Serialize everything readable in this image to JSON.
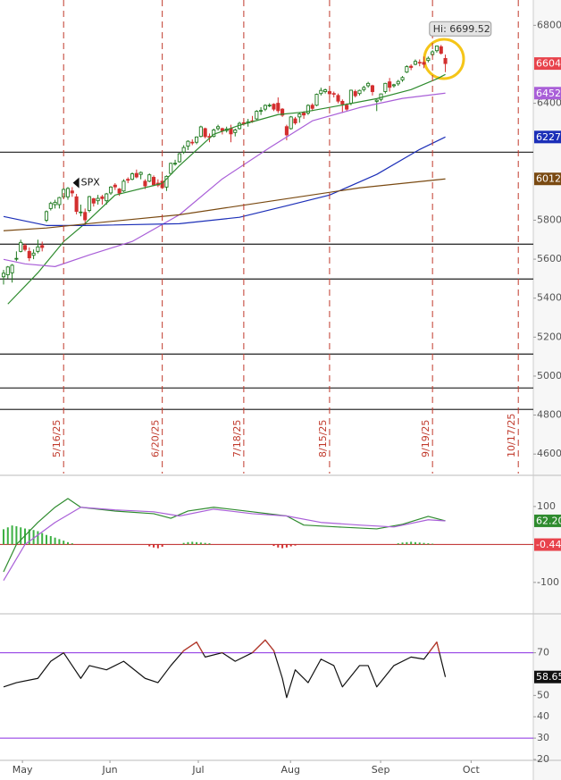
{
  "chart_data": [
    {
      "type": "candlestick",
      "xlim": [
        -0.83,
        123.5
      ],
      "ylim": [
        4500,
        6930
      ],
      "yticks": [
        6800,
        6400,
        5800,
        5600,
        5400,
        5200,
        5000,
        4800,
        4600
      ],
      "up_color": "#1f7a1f",
      "down_color": "#d32f2f",
      "candles": [
        [
          5510,
          5545,
          5470,
          5528
        ],
        [
          5520,
          5565,
          5500,
          5560
        ],
        [
          5530,
          5575,
          5480,
          5569
        ],
        [
          5600,
          5640,
          5590,
          5604
        ],
        [
          5640,
          5700,
          5635,
          5686
        ],
        [
          5670,
          5680,
          5640,
          5650
        ],
        [
          5640,
          5660,
          5590,
          5607
        ],
        [
          5620,
          5650,
          5600,
          5631
        ],
        [
          5640,
          5700,
          5630,
          5663
        ],
        [
          5670,
          5690,
          5640,
          5660
        ],
        [
          5800,
          5850,
          5790,
          5844
        ],
        [
          5860,
          5895,
          5850,
          5886
        ],
        [
          5880,
          5905,
          5860,
          5892
        ],
        [
          5880,
          5920,
          5860,
          5916
        ],
        [
          5920,
          5965,
          5910,
          5958
        ],
        [
          5920,
          5970,
          5905,
          5963
        ],
        [
          5950,
          5970,
          5920,
          5940
        ],
        [
          5920,
          5935,
          5830,
          5845
        ],
        [
          5840,
          5880,
          5820,
          5842
        ],
        [
          5840,
          5860,
          5770,
          5802
        ],
        [
          5850,
          5925,
          5840,
          5921
        ],
        [
          5910,
          5915,
          5870,
          5888
        ],
        [
          5900,
          5930,
          5880,
          5912
        ],
        [
          5920,
          5930,
          5880,
          5911
        ],
        [
          5900,
          5940,
          5880,
          5935
        ],
        [
          5940,
          5975,
          5930,
          5970
        ],
        [
          5980,
          5990,
          5955,
          5971
        ],
        [
          5960,
          5965,
          5925,
          5939
        ],
        [
          5950,
          6010,
          5945,
          6000
        ],
        [
          6010,
          6020,
          5990,
          6005
        ],
        [
          6010,
          6045,
          6005,
          6038
        ],
        [
          6040,
          6060,
          6015,
          6022
        ],
        [
          6035,
          6050,
          6010,
          6045
        ],
        [
          6000,
          6010,
          5960,
          5976
        ],
        [
          6000,
          6040,
          5995,
          6033
        ],
        [
          6020,
          6030,
          5975,
          5982
        ],
        [
          5990,
          6010,
          5970,
          5980
        ],
        [
          6000,
          6020,
          5960,
          5967
        ],
        [
          5970,
          6030,
          5950,
          6025
        ],
        [
          6040,
          6095,
          6035,
          6092
        ],
        [
          6090,
          6110,
          6080,
          6092
        ],
        [
          6100,
          6145,
          6095,
          6141
        ],
        [
          6150,
          6185,
          6140,
          6173
        ],
        [
          6180,
          6210,
          6160,
          6205
        ],
        [
          6200,
          6215,
          6185,
          6198
        ],
        [
          6200,
          6230,
          6190,
          6227
        ],
        [
          6230,
          6285,
          6225,
          6279
        ],
        [
          6270,
          6275,
          6220,
          6229
        ],
        [
          6230,
          6245,
          6200,
          6225
        ],
        [
          6230,
          6270,
          6225,
          6263
        ],
        [
          6270,
          6290,
          6260,
          6280
        ],
        [
          6270,
          6275,
          6240,
          6259
        ],
        [
          6260,
          6280,
          6250,
          6268
        ],
        [
          6270,
          6290,
          6200,
          6243
        ],
        [
          6250,
          6270,
          6230,
          6263
        ],
        [
          6270,
          6305,
          6265,
          6297
        ],
        [
          6300,
          6315,
          6285,
          6296
        ],
        [
          6300,
          6320,
          6280,
          6305
        ],
        [
          6310,
          6335,
          6300,
          6309
        ],
        [
          6320,
          6365,
          6315,
          6359
        ],
        [
          6360,
          6380,
          6340,
          6363
        ],
        [
          6370,
          6395,
          6360,
          6389
        ],
        [
          6390,
          6400,
          6380,
          6390
        ],
        [
          6395,
          6400,
          6360,
          6370
        ],
        [
          6400,
          6430,
          6350,
          6362
        ],
        [
          6370,
          6375,
          6330,
          6339
        ],
        [
          6280,
          6290,
          6210,
          6238
        ],
        [
          6270,
          6335,
          6265,
          6330
        ],
        [
          6320,
          6330,
          6290,
          6299
        ],
        [
          6330,
          6350,
          6300,
          6345
        ],
        [
          6350,
          6360,
          6320,
          6340
        ],
        [
          6350,
          6395,
          6340,
          6389
        ],
        [
          6390,
          6400,
          6360,
          6374
        ],
        [
          6390,
          6450,
          6385,
          6446
        ],
        [
          6450,
          6480,
          6440,
          6466
        ],
        [
          6460,
          6475,
          6450,
          6469
        ],
        [
          6460,
          6480,
          6430,
          6449
        ],
        [
          6450,
          6460,
          6430,
          6449
        ],
        [
          6440,
          6450,
          6400,
          6411
        ],
        [
          6410,
          6420,
          6350,
          6396
        ],
        [
          6390,
          6400,
          6360,
          6370
        ],
        [
          6400,
          6470,
          6390,
          6467
        ],
        [
          6460,
          6470,
          6430,
          6439
        ],
        [
          6450,
          6470,
          6440,
          6466
        ],
        [
          6470,
          6490,
          6460,
          6481
        ],
        [
          6490,
          6510,
          6480,
          6502
        ],
        [
          6490,
          6495,
          6440,
          6460
        ],
        [
          6410,
          6420,
          6360,
          6416
        ],
        [
          6420,
          6450,
          6410,
          6448
        ],
        [
          6460,
          6505,
          6450,
          6502
        ],
        [
          6510,
          6530,
          6460,
          6482
        ],
        [
          6490,
          6500,
          6480,
          6495
        ],
        [
          6500,
          6520,
          6490,
          6512
        ],
        [
          6520,
          6540,
          6510,
          6532
        ],
        [
          6560,
          6595,
          6555,
          6588
        ],
        [
          6590,
          6600,
          6570,
          6584
        ],
        [
          6600,
          6625,
          6595,
          6615
        ],
        [
          6610,
          6625,
          6590,
          6607
        ],
        [
          6610,
          6640,
          6580,
          6600
        ],
        [
          6620,
          6640,
          6610,
          6631
        ],
        [
          6650,
          6672,
          6640,
          6664
        ],
        [
          6670,
          6696,
          6660,
          6694
        ],
        [
          6690,
          6699.52,
          6650,
          6657
        ],
        [
          6630,
          6650,
          6560,
          6604
        ]
      ],
      "series": [
        {
          "color": "#2e8b2e",
          "x": [
            1,
            8,
            14,
            19,
            26,
            37,
            41,
            49,
            55,
            64,
            70,
            78,
            87,
            95,
            101,
            103
          ],
          "values": [
            5370,
            5530,
            5690,
            5783,
            5929,
            5989,
            6080,
            6241,
            6287,
            6342,
            6355,
            6387,
            6424,
            6470,
            6525,
            6548
          ]
        },
        {
          "color": "#a95fd8",
          "x": [
            0,
            5,
            12,
            20,
            30,
            41,
            51,
            62,
            72,
            83,
            93,
            103
          ],
          "values": [
            5599,
            5576,
            5562,
            5622,
            5691,
            5828,
            6012,
            6172,
            6310,
            6378,
            6425,
            6452
          ]
        },
        {
          "color": "#1c2fb8",
          "x": [
            0,
            10,
            20,
            41,
            55,
            66,
            76,
            87,
            97,
            103
          ],
          "values": [
            5819,
            5773,
            5773,
            5782,
            5815,
            5874,
            5929,
            6035,
            6163,
            6227
          ]
        },
        {
          "color": "#7a4a12",
          "x": [
            0,
            10,
            20,
            41,
            62,
            83,
            103
          ],
          "values": [
            5746,
            5760,
            5783,
            5828,
            5897,
            5966,
            6012
          ]
        }
      ],
      "tags": [
        {
          "value": 6604,
          "color": "#e8434c"
        },
        {
          "value": 6452,
          "color": "#a95fd8"
        },
        {
          "value": 6227,
          "color": "#1c2fb8"
        },
        {
          "value": 6012,
          "color": "#7a4a12"
        }
      ],
      "hlines": [
        6149,
        5677,
        5498,
        5113,
        4939,
        4829
      ],
      "hline_color": "#333333",
      "date_markers": [
        {
          "value": 14,
          "label": "5/16/25"
        },
        {
          "value": 37,
          "label": "6/20/25"
        },
        {
          "value": 56,
          "label": "7/18/25"
        },
        {
          "value": 76,
          "label": "8/15/25"
        },
        {
          "value": 100,
          "label": "9/19/25"
        },
        {
          "value": 120,
          "label": "10/17/25"
        }
      ],
      "date_marker_color": "#c0392b",
      "annotation": {
        "text": "Hi: 6699.52",
        "x": 102,
        "y": 6699.52
      },
      "symbol": {
        "text": "SPX",
        "x": 17,
        "y": 5992
      }
    },
    {
      "type": "macd",
      "xlim": [
        -0.83,
        123.5
      ],
      "ylim": [
        -178,
        175
      ],
      "yticks": [
        100,
        -100
      ],
      "series": [
        {
          "color": "#2e8b2e",
          "x": [
            0,
            3,
            8,
            12,
            15,
            18,
            26,
            35,
            39,
            43,
            49,
            58,
            66,
            70,
            78,
            87,
            93,
            99,
            103
          ],
          "values": [
            -72,
            0,
            58,
            98,
            121,
            98,
            88,
            81,
            69,
            88,
            98,
            86,
            75,
            51,
            46,
            41,
            53,
            74,
            62.2
          ]
        },
        {
          "color": "#a95fd8",
          "x": [
            0,
            5,
            12,
            18,
            26,
            35,
            41,
            49,
            58,
            66,
            74,
            83,
            91,
            99,
            103
          ],
          "values": [
            -95,
            0,
            58,
            98,
            91,
            86,
            75,
            93,
            81,
            75,
            58,
            51,
            46,
            65,
            62
          ]
        }
      ],
      "histogram": {
        "up_color": "#3cb043",
        "down_color": "#d32f2f",
        "x": [
          0,
          1,
          2,
          3,
          4,
          5,
          6,
          7,
          8,
          9,
          10,
          11,
          12,
          13,
          14,
          15,
          16,
          34,
          35,
          36,
          37,
          42,
          43,
          44,
          45,
          46,
          47,
          48,
          63,
          64,
          65,
          66,
          67,
          68,
          92,
          93,
          94,
          95,
          96,
          97,
          98,
          99,
          100,
          103
        ],
        "values": [
          40,
          45,
          50,
          48,
          45,
          42,
          40,
          38,
          35,
          30,
          25,
          22,
          18,
          14,
          10,
          6,
          3,
          -5,
          -8,
          -10,
          -6,
          4,
          6,
          7,
          6,
          5,
          4,
          3,
          -4,
          -8,
          -10,
          -8,
          -5,
          -3,
          3,
          5,
          6,
          7,
          6,
          5,
          4,
          3,
          2,
          -0.44
        ]
      },
      "tags": [
        {
          "value": 62.2,
          "label": "62.20",
          "color": "#2e8b2e"
        },
        {
          "value": -0.44,
          "color": "#e8434c"
        }
      ]
    },
    {
      "type": "line",
      "xlim": [
        -0.83,
        123.5
      ],
      "ylim": [
        20,
        87
      ],
      "yticks": [
        70,
        50,
        40,
        30,
        20
      ],
      "series": [
        {
          "color": "#111111",
          "x": [
            0,
            3,
            8,
            11,
            14,
            16,
            18,
            20,
            24,
            28,
            33,
            36,
            39,
            42,
            45,
            47,
            51,
            54,
            58,
            61,
            63,
            65,
            66,
            68,
            71,
            74,
            77,
            79,
            83,
            85,
            87,
            91,
            95,
            98,
            101,
            103
          ],
          "values": [
            54,
            56,
            58,
            66,
            70,
            64,
            58,
            64,
            62,
            66,
            58,
            56,
            64,
            71,
            75,
            68,
            70,
            66,
            70,
            76,
            71,
            58,
            49,
            62,
            56,
            67,
            64,
            54,
            64,
            64,
            54,
            64,
            68,
            67,
            75,
            58.65
          ]
        }
      ],
      "ref_lines": [
        70,
        30
      ],
      "ref_color": "#8a2be2",
      "overbought_color": "#c0392b",
      "tags": [
        {
          "value": 58.65,
          "color": "#111111"
        }
      ],
      "xticks": [
        {
          "value": 4.4,
          "label": "May"
        },
        {
          "value": 24.8,
          "label": "Jun"
        },
        {
          "value": 45.4,
          "label": "Jul"
        },
        {
          "value": 66.9,
          "label": "Aug"
        },
        {
          "value": 87.9,
          "label": "Sep"
        },
        {
          "value": 109,
          "label": "Oct"
        }
      ]
    }
  ]
}
